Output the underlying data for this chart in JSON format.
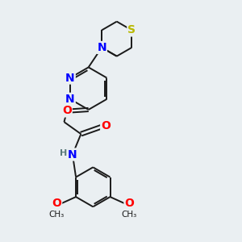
{
  "background_color": "#eaeff2",
  "atom_colors": {
    "N": "#0000ff",
    "O": "#ff0000",
    "S": "#b8b800",
    "H": "#5a7a7a"
  },
  "bond_color": "#1a1a1a",
  "lw": 1.4,
  "figsize": [
    3.0,
    3.0
  ],
  "dpi": 100,
  "xlim": [
    0,
    10
  ],
  "ylim": [
    0,
    10
  ]
}
